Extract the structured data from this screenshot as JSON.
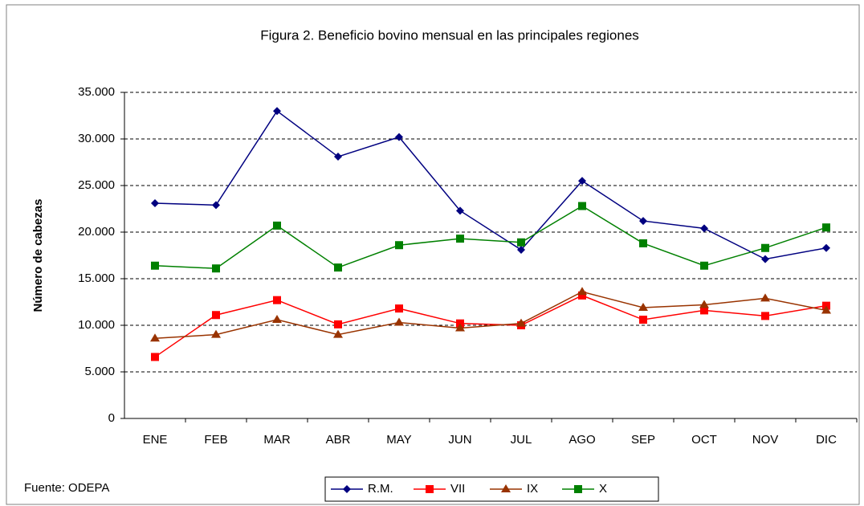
{
  "chart_data": {
    "type": "line",
    "title": "Figura 2. Beneficio bovino mensual en  las principales regiones",
    "y_label": "Número de cabezas",
    "source": "Fuente: ODEPA",
    "categories": [
      "ENE",
      "FEB",
      "MAR",
      "ABR",
      "MAY",
      "JUN",
      "JUL",
      "AGO",
      "SEP",
      "OCT",
      "NOV",
      "DIC"
    ],
    "series": [
      {
        "name": "R.M.",
        "color": "#000080",
        "marker": "diamond",
        "values": [
          23100,
          22900,
          33000,
          28100,
          30200,
          22300,
          18100,
          25500,
          21200,
          20400,
          17100,
          18300
        ]
      },
      {
        "name": "VII",
        "color": "#ff0000",
        "marker": "square",
        "values": [
          6600,
          11100,
          12700,
          10100,
          11800,
          10200,
          10000,
          13200,
          10600,
          11600,
          11000,
          12100
        ]
      },
      {
        "name": "IX",
        "color": "#993300",
        "marker": "triangle",
        "values": [
          8600,
          9000,
          10600,
          9000,
          10300,
          9700,
          10200,
          13600,
          11900,
          12200,
          12900,
          11600
        ]
      },
      {
        "name": "X",
        "color": "#008000",
        "marker": "square",
        "values": [
          16400,
          16100,
          20700,
          16200,
          18600,
          19300,
          18900,
          22800,
          18800,
          16400,
          18300,
          20500
        ]
      }
    ],
    "ylim": [
      0,
      35000
    ],
    "yticks": [
      0,
      {
        "value": 5000,
        "label": "5.000"
      },
      {
        "value": 10000,
        "label": "10.000"
      },
      {
        "value": 15000,
        "label": "15.000"
      },
      {
        "value": 20000,
        "label": "20.000"
      },
      {
        "value": 25000,
        "label": "25.000"
      },
      {
        "value": 30000,
        "label": "30.000"
      },
      {
        "value": 35000,
        "label": "35.000"
      }
    ],
    "grid": true
  }
}
